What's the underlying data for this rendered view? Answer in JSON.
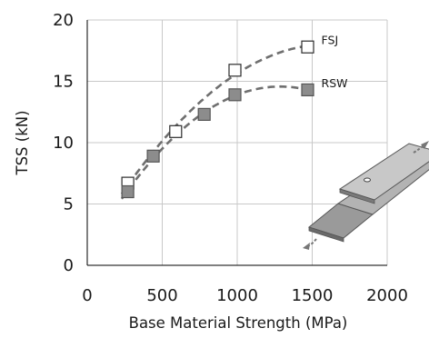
{
  "chart_data": {
    "type": "scatter",
    "xlabel": "Base Material Strength (MPa)",
    "ylabel": "TSS  (kN)",
    "xlim": [
      0,
      2000
    ],
    "ylim": [
      0,
      20
    ],
    "xticks": [
      "0",
      "500",
      "1000",
      "1500",
      "2000"
    ],
    "yticks": [
      "0",
      "5",
      "10",
      "15",
      "20"
    ],
    "grid": true,
    "series": [
      {
        "name": "FSJ",
        "marker": "open-square",
        "color": "#2b2b2b",
        "x": [
          270,
          590,
          985,
          1470
        ],
        "y": [
          6.7,
          10.9,
          15.9,
          17.8
        ],
        "trend": "dashed"
      },
      {
        "name": "RSW",
        "marker": "filled-square",
        "color": "#8c8c8c",
        "x": [
          270,
          440,
          780,
          985,
          1470
        ],
        "y": [
          6.0,
          8.9,
          12.3,
          13.9,
          14.3
        ],
        "trend": "dashed"
      }
    ],
    "trend_color": "#6f6f6f"
  }
}
